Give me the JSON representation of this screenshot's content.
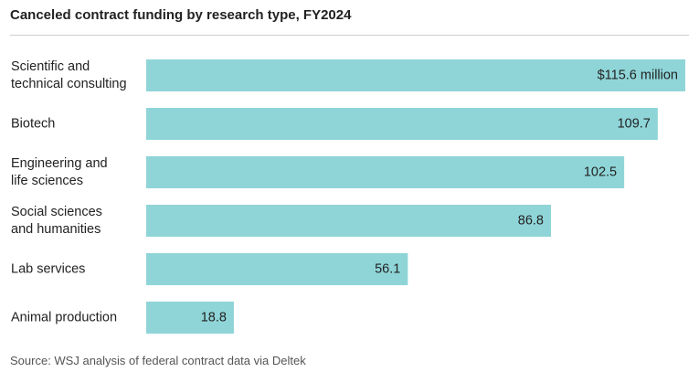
{
  "title": "Canceled contract funding by research type, FY2024",
  "source": "Source: WSJ analysis of federal contract data via Deltek",
  "colors": {
    "bar": "#8fd5d8",
    "text": "#222222",
    "source_text": "#555555",
    "divider": "#cfcfcf"
  },
  "chart_data": {
    "type": "bar",
    "orientation": "horizontal",
    "title": "Canceled contract funding by research type, FY2024",
    "unit": "million USD",
    "categories": [
      [
        "Scientific and",
        "technical consulting"
      ],
      [
        "Biotech"
      ],
      [
        "Engineering and",
        "life sciences"
      ],
      [
        "Social sciences",
        "and humanities"
      ],
      [
        "Lab services"
      ],
      [
        "Animal production"
      ]
    ],
    "values": [
      115.6,
      109.7,
      102.5,
      86.8,
      56.1,
      18.8
    ],
    "value_labels": [
      "$115.6 million",
      "109.7",
      "102.5",
      "86.8",
      "56.1",
      "18.8"
    ],
    "xlim": [
      0,
      115.6
    ],
    "grid": false,
    "legend": "none"
  }
}
